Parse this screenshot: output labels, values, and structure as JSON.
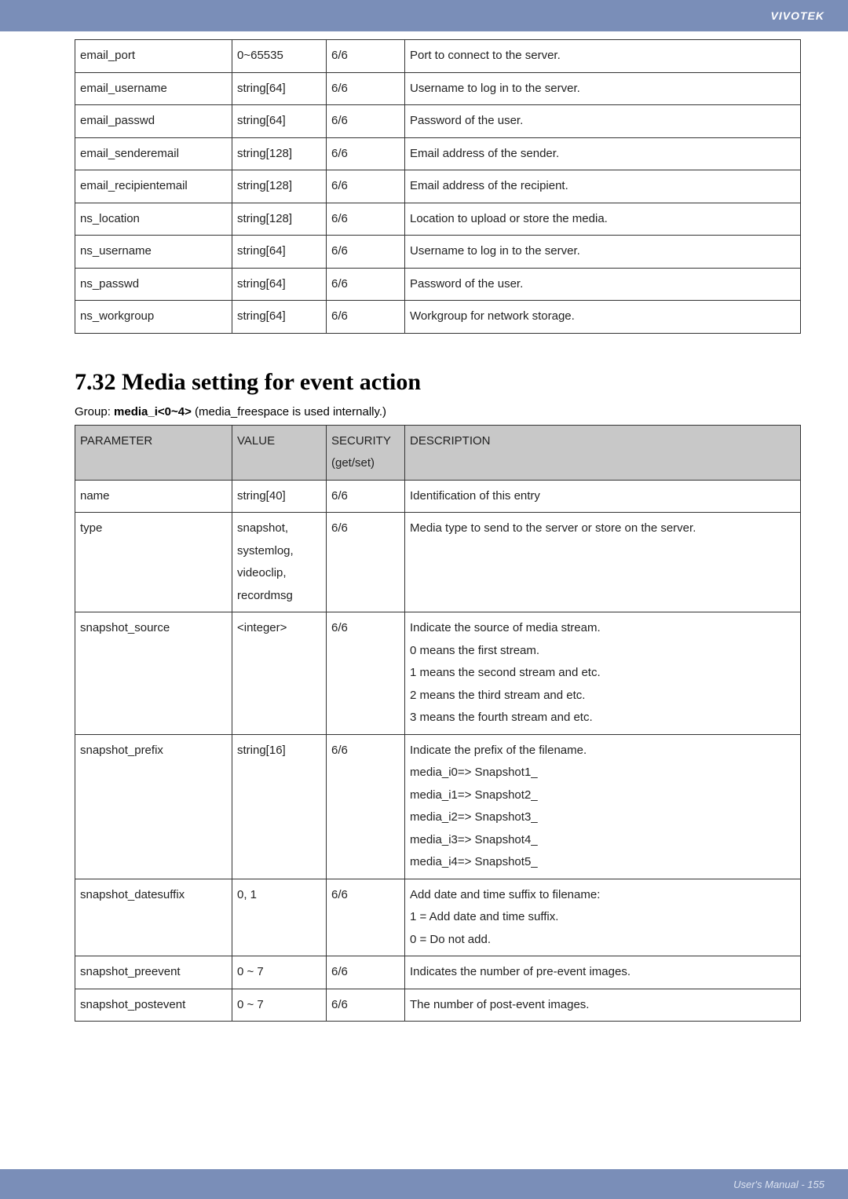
{
  "header": {
    "brand": "VIVOTEK"
  },
  "footer": {
    "text": "User's Manual - 155"
  },
  "table1": {
    "rows": [
      {
        "p": "email_port",
        "v": "0~65535",
        "s": "6/6",
        "d": [
          "Port to connect to the server."
        ]
      },
      {
        "p": "email_username",
        "v": "string[64]",
        "s": "6/6",
        "d": [
          "Username to log in to the server."
        ]
      },
      {
        "p": "email_passwd",
        "v": "string[64]",
        "s": "6/6",
        "d": [
          "Password of the user."
        ]
      },
      {
        "p": "email_senderemail",
        "v": "string[128]",
        "s": "6/6",
        "d": [
          "Email address of the sender."
        ]
      },
      {
        "p": "email_recipientemail",
        "v": "string[128]",
        "s": "6/6",
        "d": [
          "Email address of the recipient."
        ]
      },
      {
        "p": "ns_location",
        "v": "string[128]",
        "s": "6/6",
        "d": [
          "Location to upload or store the media."
        ]
      },
      {
        "p": "ns_username",
        "v": "string[64]",
        "s": "6/6",
        "d": [
          "Username to log in to the server."
        ]
      },
      {
        "p": "ns_passwd",
        "v": "string[64]",
        "s": "6/6",
        "d": [
          "Password of the user."
        ]
      },
      {
        "p": "ns_workgroup",
        "v": "string[64]",
        "s": "6/6",
        "d": [
          "Workgroup for network storage."
        ]
      }
    ]
  },
  "section": {
    "title": "7.32 Media setting for event action",
    "group_prefix": "Group: ",
    "group_bold": "media_i<0~4>",
    "group_suffix": " (media_freespace is used internally.)"
  },
  "table2": {
    "headers": {
      "p": "PARAMETER",
      "v": "VALUE",
      "s1": "SECURITY",
      "s2": "(get/set)",
      "d": "DESCRIPTION"
    },
    "rows": [
      {
        "p": "name",
        "v": [
          "string[40]"
        ],
        "s": "6/6",
        "d": [
          "Identification of this entry"
        ]
      },
      {
        "p": "type",
        "v": [
          "snapshot,",
          "systemlog,",
          "videoclip,",
          "recordmsg"
        ],
        "s": "6/6",
        "d": [
          "Media type to send to the server or store on the server."
        ]
      },
      {
        "p": "snapshot_source",
        "v": [
          "<integer>"
        ],
        "s": "6/6",
        "d": [
          "Indicate the source of media stream.",
          "0 means the first stream.",
          "1 means the second stream and etc.",
          "2 means the third stream and etc.",
          "3 means the fourth stream and etc."
        ]
      },
      {
        "p": "snapshot_prefix",
        "v": [
          "string[16]"
        ],
        "s": "6/6",
        "d": [
          "Indicate the prefix of the filename.",
          "media_i0=> Snapshot1_",
          "media_i1=> Snapshot2_",
          "media_i2=> Snapshot3_",
          "media_i3=> Snapshot4_",
          "media_i4=> Snapshot5_"
        ]
      },
      {
        "p": "snapshot_datesuffix",
        "v": [
          "0, 1"
        ],
        "s": "6/6",
        "d": [
          "Add date and time suffix to filename:",
          "1 = Add date and time suffix.",
          "0 = Do not add."
        ]
      },
      {
        "p": "snapshot_preevent",
        "v": [
          "0 ~ 7"
        ],
        "s": "6/6",
        "d": [
          "Indicates the number of pre-event images."
        ]
      },
      {
        "p": "snapshot_postevent",
        "v": [
          "0 ~ 7"
        ],
        "s": "6/6",
        "d": [
          "The number of post-event images."
        ]
      }
    ]
  }
}
